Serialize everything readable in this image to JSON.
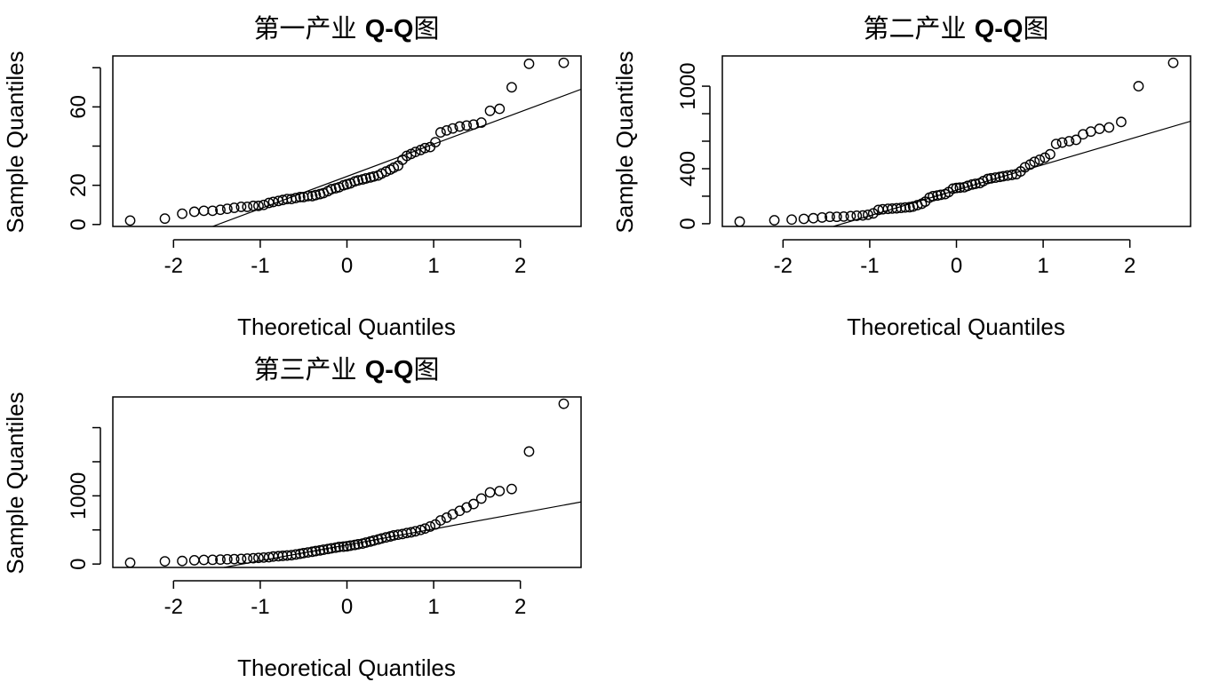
{
  "chart_data": [
    {
      "type": "scatter",
      "title_cn": "第一产业 ",
      "title_bold": "Q-Q",
      "title_suffix": "图",
      "xlabel": "Theoretical Quantiles",
      "ylabel": "Sample Quantiles",
      "xlim": [
        -2.7,
        2.7
      ],
      "ylim": [
        -1,
        86
      ],
      "xticks": [
        -2,
        -1,
        0,
        1,
        2
      ],
      "yticks": [
        0,
        20,
        40,
        60,
        80
      ],
      "ytick_labels": [
        "0",
        "20",
        "",
        "60",
        ""
      ],
      "qqline": [
        [
          -1.55,
          -1
        ],
        [
          2.7,
          69
        ]
      ],
      "points": [
        [
          -2.5,
          2
        ],
        [
          -2.1,
          3
        ],
        [
          -1.9,
          5.5
        ],
        [
          -1.76,
          6.5
        ],
        [
          -1.65,
          7
        ],
        [
          -1.55,
          7
        ],
        [
          -1.46,
          7.5
        ],
        [
          -1.38,
          8
        ],
        [
          -1.3,
          8.5
        ],
        [
          -1.22,
          9
        ],
        [
          -1.15,
          9
        ],
        [
          -1.08,
          9.5
        ],
        [
          -1.02,
          9.5
        ],
        [
          -0.96,
          10
        ],
        [
          -0.9,
          11
        ],
        [
          -0.85,
          11.5
        ],
        [
          -0.79,
          12
        ],
        [
          -0.74,
          12.5
        ],
        [
          -0.69,
          13
        ],
        [
          -0.64,
          13
        ],
        [
          -0.59,
          13.5
        ],
        [
          -0.54,
          14
        ],
        [
          -0.5,
          14
        ],
        [
          -0.45,
          14.5
        ],
        [
          -0.4,
          14.5
        ],
        [
          -0.36,
          15
        ],
        [
          -0.31,
          15.5
        ],
        [
          -0.27,
          16
        ],
        [
          -0.22,
          17
        ],
        [
          -0.18,
          18
        ],
        [
          -0.13,
          18.5
        ],
        [
          -0.09,
          19
        ],
        [
          -0.04,
          20
        ],
        [
          0,
          20.5
        ],
        [
          0.04,
          21
        ],
        [
          0.09,
          22
        ],
        [
          0.13,
          22.5
        ],
        [
          0.18,
          23
        ],
        [
          0.22,
          23.5
        ],
        [
          0.27,
          24
        ],
        [
          0.31,
          24.5
        ],
        [
          0.36,
          25
        ],
        [
          0.4,
          26
        ],
        [
          0.45,
          27
        ],
        [
          0.5,
          28
        ],
        [
          0.54,
          29
        ],
        [
          0.59,
          30
        ],
        [
          0.64,
          33
        ],
        [
          0.69,
          35
        ],
        [
          0.74,
          36
        ],
        [
          0.79,
          37
        ],
        [
          0.85,
          38
        ],
        [
          0.9,
          39
        ],
        [
          0.96,
          39.5
        ],
        [
          1.02,
          42
        ],
        [
          1.08,
          47
        ],
        [
          1.15,
          48
        ],
        [
          1.22,
          49
        ],
        [
          1.3,
          50
        ],
        [
          1.38,
          50.5
        ],
        [
          1.46,
          51
        ],
        [
          1.55,
          52
        ],
        [
          1.65,
          58
        ],
        [
          1.76,
          59
        ],
        [
          1.9,
          70
        ],
        [
          2.1,
          82
        ],
        [
          2.5,
          82.5
        ]
      ]
    },
    {
      "type": "scatter",
      "title_cn": "第二产业 ",
      "title_bold": "Q-Q",
      "title_suffix": "图",
      "xlabel": "Theoretical Quantiles",
      "ylabel": "Sample Quantiles",
      "xlim": [
        -2.7,
        2.7
      ],
      "ylim": [
        -20,
        1220
      ],
      "xticks": [
        -2,
        -1,
        0,
        1,
        2
      ],
      "yticks": [
        0,
        200,
        400,
        600,
        800,
        1000
      ],
      "ytick_labels": [
        "0",
        "",
        "400",
        "",
        "",
        "1000"
      ],
      "qqline": [
        [
          -1.42,
          -20
        ],
        [
          2.7,
          745
        ]
      ],
      "points": [
        [
          -2.5,
          15
        ],
        [
          -2.1,
          25
        ],
        [
          -1.9,
          30
        ],
        [
          -1.76,
          35
        ],
        [
          -1.65,
          40
        ],
        [
          -1.55,
          45
        ],
        [
          -1.46,
          50
        ],
        [
          -1.38,
          50
        ],
        [
          -1.3,
          52
        ],
        [
          -1.22,
          55
        ],
        [
          -1.15,
          58
        ],
        [
          -1.08,
          60
        ],
        [
          -1.02,
          65
        ],
        [
          -0.96,
          75
        ],
        [
          -0.9,
          100
        ],
        [
          -0.85,
          105
        ],
        [
          -0.79,
          108
        ],
        [
          -0.74,
          110
        ],
        [
          -0.69,
          112
        ],
        [
          -0.64,
          115
        ],
        [
          -0.59,
          118
        ],
        [
          -0.54,
          120
        ],
        [
          -0.5,
          125
        ],
        [
          -0.45,
          135
        ],
        [
          -0.4,
          145
        ],
        [
          -0.36,
          160
        ],
        [
          -0.31,
          190
        ],
        [
          -0.27,
          200
        ],
        [
          -0.22,
          205
        ],
        [
          -0.18,
          210
        ],
        [
          -0.13,
          215
        ],
        [
          -0.09,
          230
        ],
        [
          -0.04,
          255
        ],
        [
          0,
          260
        ],
        [
          0.04,
          262
        ],
        [
          0.09,
          265
        ],
        [
          0.13,
          275
        ],
        [
          0.18,
          285
        ],
        [
          0.22,
          290
        ],
        [
          0.27,
          295
        ],
        [
          0.31,
          310
        ],
        [
          0.36,
          325
        ],
        [
          0.4,
          330
        ],
        [
          0.45,
          335
        ],
        [
          0.5,
          340
        ],
        [
          0.54,
          345
        ],
        [
          0.59,
          350
        ],
        [
          0.64,
          355
        ],
        [
          0.69,
          360
        ],
        [
          0.74,
          380
        ],
        [
          0.79,
          410
        ],
        [
          0.85,
          430
        ],
        [
          0.9,
          450
        ],
        [
          0.96,
          465
        ],
        [
          1.02,
          480
        ],
        [
          1.08,
          505
        ],
        [
          1.15,
          580
        ],
        [
          1.22,
          590
        ],
        [
          1.3,
          600
        ],
        [
          1.38,
          610
        ],
        [
          1.46,
          650
        ],
        [
          1.55,
          670
        ],
        [
          1.65,
          690
        ],
        [
          1.76,
          700
        ],
        [
          1.9,
          740
        ],
        [
          2.1,
          1000
        ],
        [
          2.5,
          1170
        ]
      ]
    },
    {
      "type": "scatter",
      "title_cn": "第三产业 ",
      "title_bold": "Q-Q",
      "title_suffix": "图",
      "xlabel": "Theoretical Quantiles",
      "ylabel": "Sample Quantiles",
      "xlim": [
        -2.7,
        2.7
      ],
      "ylim": [
        -50,
        2450
      ],
      "xticks": [
        -2,
        -1,
        0,
        1,
        2
      ],
      "yticks": [
        0,
        500,
        1000,
        1500,
        2000
      ],
      "ytick_labels": [
        "0",
        "",
        "1000",
        "",
        ""
      ],
      "qqline": [
        [
          -1.42,
          -50
        ],
        [
          2.7,
          910
        ]
      ],
      "points": [
        [
          -2.5,
          20
        ],
        [
          -2.1,
          40
        ],
        [
          -1.9,
          45
        ],
        [
          -1.76,
          55
        ],
        [
          -1.65,
          60
        ],
        [
          -1.55,
          62
        ],
        [
          -1.46,
          65
        ],
        [
          -1.38,
          70
        ],
        [
          -1.3,
          72
        ],
        [
          -1.22,
          75
        ],
        [
          -1.15,
          80
        ],
        [
          -1.08,
          85
        ],
        [
          -1.02,
          90
        ],
        [
          -0.96,
          95
        ],
        [
          -0.9,
          100
        ],
        [
          -0.85,
          110
        ],
        [
          -0.79,
          115
        ],
        [
          -0.74,
          120
        ],
        [
          -0.69,
          125
        ],
        [
          -0.64,
          130
        ],
        [
          -0.59,
          140
        ],
        [
          -0.54,
          150
        ],
        [
          -0.5,
          160
        ],
        [
          -0.45,
          170
        ],
        [
          -0.4,
          180
        ],
        [
          -0.36,
          190
        ],
        [
          -0.31,
          200
        ],
        [
          -0.27,
          210
        ],
        [
          -0.22,
          220
        ],
        [
          -0.18,
          230
        ],
        [
          -0.13,
          240
        ],
        [
          -0.09,
          250
        ],
        [
          -0.04,
          255
        ],
        [
          0,
          260
        ],
        [
          0.04,
          270
        ],
        [
          0.09,
          280
        ],
        [
          0.13,
          290
        ],
        [
          0.18,
          300
        ],
        [
          0.22,
          315
        ],
        [
          0.27,
          330
        ],
        [
          0.31,
          345
        ],
        [
          0.36,
          360
        ],
        [
          0.4,
          375
        ],
        [
          0.45,
          390
        ],
        [
          0.5,
          405
        ],
        [
          0.54,
          420
        ],
        [
          0.59,
          430
        ],
        [
          0.64,
          440
        ],
        [
          0.69,
          455
        ],
        [
          0.74,
          465
        ],
        [
          0.79,
          480
        ],
        [
          0.85,
          500
        ],
        [
          0.9,
          520
        ],
        [
          0.96,
          550
        ],
        [
          1.02,
          580
        ],
        [
          1.08,
          640
        ],
        [
          1.15,
          680
        ],
        [
          1.22,
          730
        ],
        [
          1.3,
          780
        ],
        [
          1.38,
          830
        ],
        [
          1.46,
          880
        ],
        [
          1.55,
          960
        ],
        [
          1.65,
          1050
        ],
        [
          1.76,
          1070
        ],
        [
          1.9,
          1100
        ],
        [
          2.1,
          1650
        ],
        [
          2.5,
          2350
        ]
      ]
    }
  ]
}
